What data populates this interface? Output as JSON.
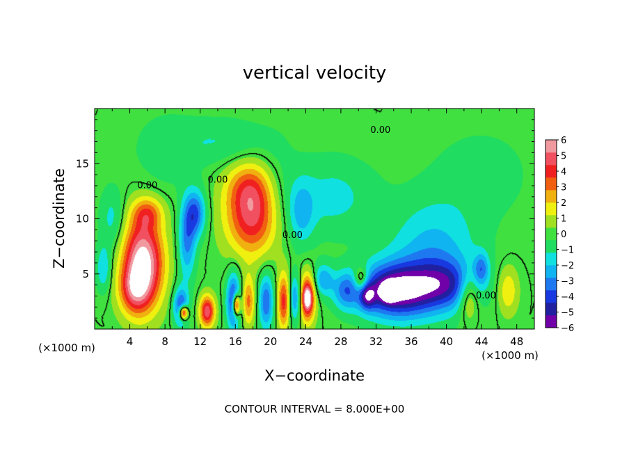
{
  "chart_data": {
    "type": "heatmap",
    "title": "vertical velocity",
    "xlabel": "X−coordinate",
    "ylabel": "Z−coordinate",
    "x_unit_left": "(×1000 m)",
    "x_unit_right": "(×1000 m)",
    "footer": "CONTOUR INTERVAL = 8.000E+00",
    "xlim": [
      0,
      50
    ],
    "ylim": [
      0,
      20
    ],
    "x_ticks": [
      4,
      8,
      12,
      16,
      20,
      24,
      28,
      32,
      36,
      40,
      44,
      48
    ],
    "y_ticks": [
      5,
      10,
      15
    ],
    "contour_labels": [
      {
        "text": "0.00",
        "x": 6.0,
        "y": 13.0
      },
      {
        "text": "0.00",
        "x": 14.0,
        "y": 13.5
      },
      {
        "text": "0.00",
        "x": 22.5,
        "y": 8.5
      },
      {
        "text": "0.00",
        "x": 32.5,
        "y": 18.0
      },
      {
        "text": "0.00",
        "x": 44.5,
        "y": 3.0
      }
    ],
    "colorbar": {
      "min": -6,
      "max": 6,
      "tick_values": [
        6,
        5,
        4,
        3,
        2,
        1,
        0,
        -1,
        -2,
        -3,
        -4,
        -5,
        -6
      ],
      "tick_labels": [
        "6",
        "5",
        "4",
        "3",
        "2",
        "1",
        "0",
        "−1",
        "−2",
        "−3",
        "−4",
        "−5",
        "−6"
      ],
      "colors": [
        "#7000a8",
        "#2020a0",
        "#1838e0",
        "#1e78f0",
        "#10b4f0",
        "#10e0e0",
        "#20dc60",
        "#40e040",
        "#a0e020",
        "#f0f010",
        "#f0b010",
        "#f06010",
        "#f02020",
        "#f05060",
        "#f09aa0"
      ]
    },
    "features": [
      {
        "x": 5.5,
        "y": 6.0,
        "v": 6.8,
        "sx": 1.6,
        "sy": 2.8
      },
      {
        "x": 4.5,
        "y": 3.5,
        "v": 3.0,
        "sx": 1.2,
        "sy": 1.5
      },
      {
        "x": 18.0,
        "y": 10.5,
        "v": 5.0,
        "sx": 2.1,
        "sy": 2.6
      },
      {
        "x": 17.5,
        "y": 13.0,
        "v": 1.5,
        "sx": 1.8,
        "sy": 1.5
      },
      {
        "x": 20.5,
        "y": 12.0,
        "v": -1.0,
        "sx": 1.5,
        "sy": 3.0
      },
      {
        "x": 10.5,
        "y": 8.0,
        "v": -3.0,
        "sx": 0.7,
        "sy": 2.5
      },
      {
        "x": 11.5,
        "y": 10.5,
        "v": -3.5,
        "sx": 0.8,
        "sy": 1.5
      },
      {
        "x": 9.8,
        "y": 2.0,
        "v": -4.0,
        "sx": 0.6,
        "sy": 1.2
      },
      {
        "x": 10.1,
        "y": 1.5,
        "v": 6.5,
        "sx": 0.35,
        "sy": 0.45
      },
      {
        "x": 12.8,
        "y": 1.6,
        "v": 5.0,
        "sx": 0.6,
        "sy": 1.0
      },
      {
        "x": 15.8,
        "y": 2.5,
        "v": -4.5,
        "sx": 0.55,
        "sy": 1.8
      },
      {
        "x": 16.1,
        "y": 2.2,
        "v": 6.5,
        "sx": 0.3,
        "sy": 0.7
      },
      {
        "x": 17.5,
        "y": 2.5,
        "v": 3.0,
        "sx": 0.5,
        "sy": 1.5
      },
      {
        "x": 19.5,
        "y": 2.5,
        "v": -3.5,
        "sx": 0.6,
        "sy": 1.8
      },
      {
        "x": 21.5,
        "y": 2.5,
        "v": 4.0,
        "sx": 0.5,
        "sy": 1.8
      },
      {
        "x": 22.8,
        "y": 2.8,
        "v": -3.0,
        "sx": 0.5,
        "sy": 1.5
      },
      {
        "x": 24.2,
        "y": 2.8,
        "v": 5.5,
        "sx": 0.6,
        "sy": 1.5
      },
      {
        "x": 24.2,
        "y": 2.8,
        "v": 3.0,
        "sx": 0.3,
        "sy": 0.6
      },
      {
        "x": 26.0,
        "y": 4.5,
        "v": -2.5,
        "sx": 0.8,
        "sy": 1.0
      },
      {
        "x": 28.5,
        "y": 3.5,
        "v": -2.5,
        "sx": 1.0,
        "sy": 1.2
      },
      {
        "x": 30.3,
        "y": 4.5,
        "v": 3.0,
        "sx": 0.6,
        "sy": 0.8
      },
      {
        "x": 31.0,
        "y": 3.0,
        "v": -3.0,
        "sx": 0.6,
        "sy": 0.8
      },
      {
        "x": 34.0,
        "y": 3.5,
        "v": -6.0,
        "sx": 3.0,
        "sy": 1.7
      },
      {
        "x": 33.5,
        "y": 3.4,
        "v": -6.5,
        "sx": 0.55,
        "sy": 0.5
      },
      {
        "x": 38.5,
        "y": 6.5,
        "v": -2.5,
        "sx": 3.5,
        "sy": 3.5
      },
      {
        "x": 40.0,
        "y": 4.0,
        "v": -3.0,
        "sx": 2.5,
        "sy": 1.5
      },
      {
        "x": 42.5,
        "y": 3.0,
        "v": 2.5,
        "sx": 0.8,
        "sy": 1.5
      },
      {
        "x": 44.0,
        "y": 5.5,
        "v": -2.5,
        "sx": 0.6,
        "sy": 1.0
      },
      {
        "x": 47.0,
        "y": 3.5,
        "v": 2.0,
        "sx": 0.8,
        "sy": 1.5
      },
      {
        "x": 23.5,
        "y": 10.5,
        "v": -2.0,
        "sx": 1.0,
        "sy": 2.0
      },
      {
        "x": 27.0,
        "y": 12.0,
        "v": -1.5,
        "sx": 3.5,
        "sy": 2.5
      },
      {
        "x": 14.5,
        "y": 17.0,
        "v": -1.2,
        "sx": 4.0,
        "sy": 1.5
      },
      {
        "x": 8.0,
        "y": 16.0,
        "v": -0.8,
        "sx": 2.5,
        "sy": 2.5
      },
      {
        "x": 2.0,
        "y": 10.0,
        "v": -1.5,
        "sx": 1.0,
        "sy": 2.0
      },
      {
        "x": 1.0,
        "y": 5.5,
        "v": -2.0,
        "sx": 0.6,
        "sy": 1.5
      },
      {
        "x": 44.0,
        "y": 14.0,
        "v": -0.8,
        "sx": 4.0,
        "sy": 3.0
      },
      {
        "x": 6.0,
        "y": 10.5,
        "v": 2.5,
        "sx": 1.2,
        "sy": 1.0
      }
    ]
  }
}
